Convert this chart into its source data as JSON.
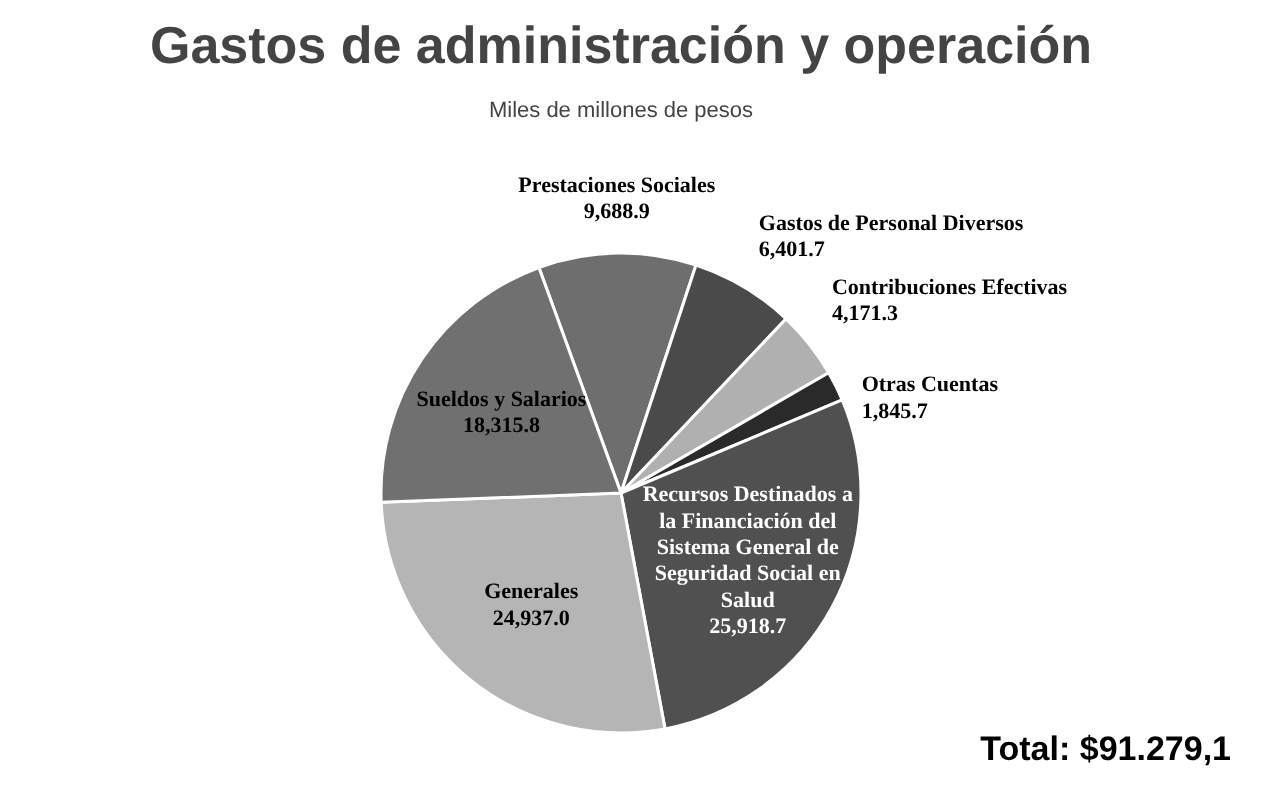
{
  "chart_data": {
    "type": "pie",
    "title": "Gastos de administración y operación",
    "subtitle": "Miles de millones de pesos",
    "categories": [
      "Prestaciones Sociales",
      "Gastos de Personal Diversos",
      "Contribuciones Efectivas",
      "Otras Cuentas",
      "Recursos Destinados a la Financiación del Sistema General de Seguridad Social en Salud",
      "Generales",
      "Sueldos y Salarios"
    ],
    "values": [
      9688.9,
      6401.7,
      4171.3,
      1845.7,
      25918.7,
      24937.0,
      18315.8
    ],
    "value_labels": [
      "9,688.9",
      "6,401.7",
      "4,171.3",
      "1,845.7",
      "25,918.7",
      "24,937.0",
      "18,315.8"
    ],
    "colors": [
      "#6e6e6e",
      "#4a4a4a",
      "#b0b0b0",
      "#2a2a2a",
      "#505050",
      "#b5b5b5",
      "#707070"
    ],
    "annotations": [
      "Total: $91.279,1"
    ]
  }
}
